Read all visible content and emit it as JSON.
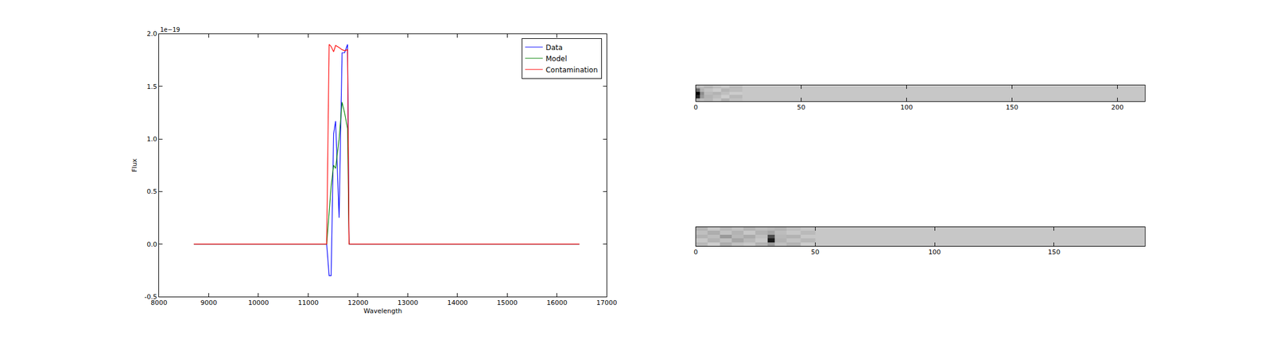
{
  "chart_data": [
    {
      "type": "line",
      "x_label": "Wavelength",
      "y_label": "Flux",
      "annotations": [
        "1e−19"
      ],
      "x": [
        8700,
        11370,
        11420,
        11460,
        11510,
        11550,
        11620,
        11680,
        11730,
        11790,
        11820,
        16450
      ],
      "series": [
        {
          "name": "Data",
          "color": "#0000ff",
          "values": [
            0,
            0,
            -0.3,
            -0.3,
            1.05,
            1.17,
            0.25,
            1.82,
            1.82,
            1.9,
            0,
            0
          ]
        },
        {
          "name": "Model",
          "color": "#008000",
          "values": [
            0,
            0,
            0.3,
            0.55,
            0.75,
            0.72,
            1.0,
            1.35,
            1.25,
            1.1,
            0,
            0
          ]
        },
        {
          "name": "Contamination",
          "color": "#ff0000",
          "values": [
            0,
            0,
            1.9,
            1.88,
            1.83,
            1.89,
            1.87,
            1.85,
            1.84,
            1.85,
            0,
            0
          ]
        }
      ],
      "xlim": [
        8000,
        17000
      ],
      "xticks": [
        8000,
        9000,
        10000,
        11000,
        12000,
        13000,
        14000,
        15000,
        16000,
        17000
      ],
      "ylim": [
        -0.5,
        2.0
      ],
      "yticks": [
        {
          "value": -0.5,
          "label": "-0.5"
        },
        {
          "value": 0,
          "label": "0.0"
        },
        {
          "value": 0.5,
          "label": "0.5"
        },
        {
          "value": 1.0,
          "label": "1.0"
        },
        {
          "value": 1.5,
          "label": "1.5"
        },
        {
          "value": 2.0,
          "label": "2.0"
        }
      ],
      "legend": "upper right",
      "grid": false
    },
    {
      "type": "heatmap",
      "x": [
        0,
        2,
        4,
        8,
        12,
        16,
        22,
        213
      ],
      "y": [
        0,
        1,
        2,
        3,
        4,
        5
      ],
      "z": [
        [
          0.3,
          0.25,
          0.28,
          0.22,
          0.3,
          0.24,
          0.22
        ],
        [
          0.85,
          0.4,
          0.3,
          0.26,
          0.2,
          0.28,
          0.22
        ],
        [
          1.0,
          0.45,
          0.27,
          0.3,
          0.25,
          0.2,
          0.22
        ],
        [
          0.6,
          0.3,
          0.24,
          0.2,
          0.29,
          0.26,
          0.22
        ],
        [
          0.3,
          0.26,
          0.3,
          0.25,
          0.22,
          0.27,
          0.22
        ]
      ],
      "zlim": [
        0,
        1
      ],
      "xlim": [
        0,
        213
      ],
      "xticks": [
        0,
        50,
        100,
        150,
        200
      ],
      "ylim": [
        0,
        5
      ],
      "tick_labels": "x"
    },
    {
      "type": "heatmap",
      "x": [
        0,
        5,
        10,
        15,
        20,
        25,
        30,
        33,
        38,
        44,
        50,
        188
      ],
      "y": [
        0,
        1,
        2,
        3,
        4,
        5
      ],
      "z": [
        [
          0.28,
          0.2,
          0.32,
          0.25,
          0.22,
          0.3,
          0.4,
          0.25,
          0.3,
          0.2,
          0.22
        ],
        [
          0.22,
          0.3,
          0.25,
          0.35,
          0.28,
          0.22,
          0.9,
          0.3,
          0.24,
          0.28,
          0.22
        ],
        [
          0.3,
          0.26,
          0.4,
          0.28,
          0.33,
          0.25,
          0.7,
          0.28,
          0.3,
          0.22,
          0.22
        ],
        [
          0.25,
          0.32,
          0.24,
          0.3,
          0.22,
          0.3,
          0.35,
          0.26,
          0.22,
          0.27,
          0.22
        ],
        [
          0.3,
          0.22,
          0.28,
          0.24,
          0.3,
          0.26,
          0.28,
          0.3,
          0.25,
          0.22,
          0.22
        ]
      ],
      "zlim": [
        0,
        1
      ],
      "xlim": [
        0,
        188
      ],
      "xticks": [
        0,
        50,
        100,
        150
      ],
      "ylim": [
        0,
        5
      ],
      "tick_labels": "x"
    }
  ]
}
